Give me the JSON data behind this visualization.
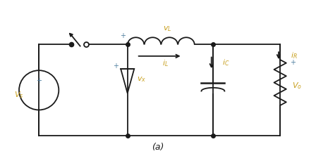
{
  "bg_color": "#ffffff",
  "wire_color": "#1a1a1a",
  "label_color_orange": "#c8a020",
  "label_color_blue": "#5080a0",
  "figsize": [
    4.48,
    2.22
  ],
  "dpi": 100,
  "title": "(a)"
}
